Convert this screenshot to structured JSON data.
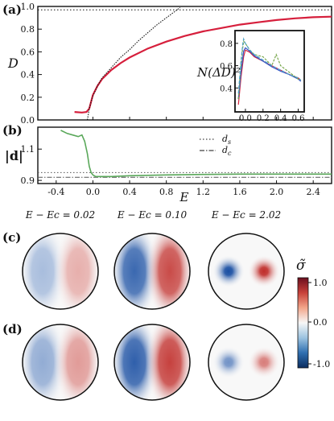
{
  "panel_labels": {
    "a": "(a)",
    "b": "(b)",
    "c": "(c)",
    "d": "(d)"
  },
  "colorbar": {
    "label": "σ̃",
    "ticks": [
      "1.0",
      "0.0",
      "-1.0"
    ],
    "colors": [
      "#0b2c5f",
      "#2f6fb0",
      "#9cc3e0",
      "#f7f7f7",
      "#f2a58a",
      "#c8413a",
      "#6a0f1e"
    ]
  },
  "chart_data": [
    {
      "type": "line",
      "panel": "a",
      "ylabel": "D",
      "xlim": [
        -0.6,
        2.6
      ],
      "ylim": [
        0.0,
        1.0
      ],
      "yticks": [
        "0.0",
        "0.2",
        "0.4",
        "0.6",
        "0.8",
        "1.0"
      ],
      "reference_line_y": 0.97,
      "series": [
        {
          "name": "",
          "style": "red-solid",
          "x": [
            -0.2,
            -0.12,
            -0.07,
            -0.04,
            -0.02,
            0.0,
            0.05,
            0.1,
            0.2,
            0.3,
            0.4,
            0.6,
            0.8,
            1.0,
            1.2,
            1.4,
            1.6,
            1.8,
            2.0,
            2.2,
            2.4,
            2.6
          ],
          "y": [
            0.07,
            0.065,
            0.07,
            0.1,
            0.16,
            0.22,
            0.3,
            0.36,
            0.44,
            0.5,
            0.55,
            0.63,
            0.69,
            0.74,
            0.78,
            0.81,
            0.84,
            0.86,
            0.88,
            0.895,
            0.905,
            0.91
          ]
        },
        {
          "name": "",
          "style": "black-dotted",
          "x": [
            -0.06,
            -0.04,
            -0.02,
            0.0,
            0.05,
            0.1,
            0.2,
            0.3,
            0.4,
            0.5,
            0.6,
            0.7,
            0.8,
            0.9,
            0.95
          ],
          "y": [
            0.0,
            0.1,
            0.16,
            0.21,
            0.3,
            0.37,
            0.46,
            0.55,
            0.62,
            0.7,
            0.77,
            0.84,
            0.9,
            0.96,
            0.99
          ]
        }
      ],
      "inset": {
        "ylabel": "N(ΔD)²",
        "xlim": [
          -0.1,
          0.65
        ],
        "ylim": [
          0.2,
          0.9
        ],
        "xticks": [
          "0.0",
          "0.2",
          "0.4",
          "0.6"
        ],
        "yticks": [
          "0.4",
          "0.6",
          "0.8"
        ],
        "series": [
          {
            "name": "",
            "color": "#d62740",
            "x": [
              -0.08,
              -0.05,
              -0.02,
              0.0,
              0.05,
              0.1,
              0.2,
              0.3,
              0.4,
              0.5,
              0.6,
              0.63
            ],
            "y": [
              0.25,
              0.5,
              0.68,
              0.74,
              0.72,
              0.68,
              0.64,
              0.6,
              0.56,
              0.52,
              0.49,
              0.47
            ]
          },
          {
            "name": "",
            "color": "#3355c8",
            "x": [
              -0.08,
              -0.05,
              -0.02,
              0.0,
              0.05,
              0.1,
              0.2,
              0.3,
              0.4,
              0.5,
              0.6,
              0.63
            ],
            "y": [
              0.3,
              0.55,
              0.73,
              0.76,
              0.73,
              0.69,
              0.64,
              0.59,
              0.55,
              0.52,
              0.48,
              0.46
            ]
          },
          {
            "name": "",
            "color": "#7aa84e",
            "x": [
              -0.08,
              -0.06,
              -0.04,
              -0.02,
              0.0,
              0.05,
              0.1,
              0.2,
              0.3,
              0.35,
              0.4,
              0.5,
              0.6,
              0.63
            ],
            "y": [
              0.3,
              0.52,
              0.7,
              0.82,
              0.8,
              0.74,
              0.7,
              0.68,
              0.6,
              0.7,
              0.6,
              0.54,
              0.48,
              0.47
            ]
          },
          {
            "name": "",
            "color": "#4fa3c8",
            "x": [
              -0.08,
              -0.05,
              -0.03,
              -0.02,
              0.0,
              0.05,
              0.1,
              0.2,
              0.3,
              0.4,
              0.5,
              0.6,
              0.63
            ],
            "y": [
              0.35,
              0.65,
              0.8,
              0.84,
              0.8,
              0.74,
              0.7,
              0.65,
              0.6,
              0.56,
              0.52,
              0.49,
              0.47
            ]
          }
        ]
      }
    },
    {
      "type": "line",
      "panel": "b",
      "ylabel": "|d|",
      "xlabel": "E",
      "xlim": [
        -0.6,
        2.6
      ],
      "ylim": [
        0.88,
        1.24
      ],
      "xticks": [
        "-0.4",
        "0.0",
        "0.4",
        "0.8",
        "1.2",
        "1.6",
        "2.0",
        "2.4"
      ],
      "yticks": [
        "0.9",
        "1.1"
      ],
      "reference_lines": [
        {
          "name": "d_s",
          "label": "ds",
          "style": "dotted",
          "y": 0.95
        },
        {
          "name": "d_c",
          "label": "dc",
          "style": "dashdot",
          "y": 0.92
        }
      ],
      "series": [
        {
          "name": "",
          "color": "#5aa85a",
          "x": [
            -0.35,
            -0.28,
            -0.22,
            -0.16,
            -0.12,
            -0.09,
            -0.06,
            -0.04,
            -0.02,
            0.0,
            0.03,
            0.1,
            0.2,
            0.4,
            0.8,
            1.2,
            1.6,
            2.0,
            2.4,
            2.6
          ],
          "y": [
            1.22,
            1.2,
            1.19,
            1.18,
            1.19,
            1.15,
            1.07,
            0.99,
            0.95,
            0.935,
            0.925,
            0.925,
            0.925,
            0.93,
            0.935,
            0.938,
            0.94,
            0.94,
            0.94,
            0.94
          ]
        }
      ]
    }
  ],
  "maps": {
    "column_titles": [
      "E − Ec = 0.02",
      "E − Ec = 0.10",
      "E − Ec = 2.02"
    ],
    "row_c": [
      {
        "amplitude": 0.35,
        "shape": "dipole-broad"
      },
      {
        "amplitude": 0.85,
        "shape": "dipole-broad"
      },
      {
        "amplitude": 1.0,
        "shape": "dipole-localized"
      }
    ],
    "row_d": [
      {
        "amplitude": 0.45,
        "shape": "dipole-broad"
      },
      {
        "amplitude": 0.9,
        "shape": "dipole-broad"
      },
      {
        "amplitude": 0.6,
        "shape": "dipole-localized"
      }
    ]
  }
}
